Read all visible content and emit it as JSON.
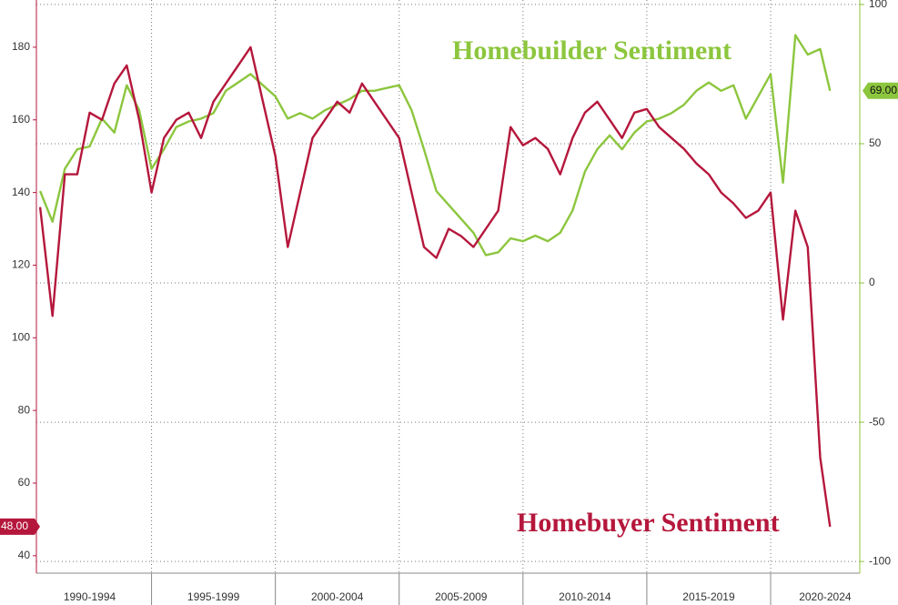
{
  "chart_data": {
    "type": "line",
    "x": [
      1990.5,
      1991,
      1991.5,
      1992,
      1992.5,
      1993,
      1993.5,
      1994,
      1994.5,
      1995,
      1995.5,
      1996,
      1996.5,
      1997,
      1997.5,
      1998,
      1998.5,
      1999,
      1999.5,
      2000,
      2000.5,
      2001,
      2001.5,
      2002,
      2002.5,
      2003,
      2003.5,
      2004,
      2004.5,
      2005,
      2005.5,
      2006,
      2006.5,
      2007,
      2007.5,
      2008,
      2008.5,
      2009,
      2009.5,
      2010,
      2010.5,
      2011,
      2011.5,
      2012,
      2012.5,
      2013,
      2013.5,
      2014,
      2014.5,
      2015,
      2015.5,
      2016,
      2016.5,
      2017,
      2017.5,
      2018,
      2018.5,
      2019,
      2019.5,
      2020,
      2020.5,
      2021,
      2021.5,
      2022,
      2022.4
    ],
    "xlim": [
      1990.35,
      2023.6
    ],
    "xticks": [
      {
        "value": 1992.5,
        "label": "1990-1994"
      },
      {
        "value": 1997.5,
        "label": "1995-1999"
      },
      {
        "value": 2002.5,
        "label": "2000-2004"
      },
      {
        "value": 2007.5,
        "label": "2005-2009"
      },
      {
        "value": 2012.5,
        "label": "2010-2014"
      },
      {
        "value": 2017.5,
        "label": "2015-2019"
      },
      {
        "value": 2022.2,
        "label": "2020-2024"
      }
    ],
    "xgrid": [
      1995,
      2000,
      2005,
      2010,
      2015,
      2020
    ],
    "ylim": [
      35.2,
      193
    ],
    "yticks": [
      40,
      60,
      80,
      100,
      120,
      140,
      160,
      180
    ],
    "y2lim": [
      -104.2,
      101.6
    ],
    "y2ticks": [
      -100,
      -50,
      0,
      50,
      100
    ],
    "grid": true,
    "series": [
      {
        "name": "Homebuilder Sentiment",
        "color": "#8cc63e",
        "axis": "y2",
        "values": [
          33,
          22,
          41,
          48,
          49,
          59,
          54,
          71,
          62,
          41,
          48,
          56,
          58,
          59,
          61,
          69,
          72,
          75,
          71,
          67,
          59,
          61,
          59,
          62,
          64,
          66,
          69,
          69,
          70,
          71,
          62,
          48,
          33,
          28,
          23,
          18,
          10,
          11,
          16,
          15,
          17,
          15,
          18,
          26,
          40,
          48,
          53,
          48,
          54,
          58,
          59,
          61,
          64,
          69,
          72,
          69,
          71,
          59,
          67,
          75,
          36,
          89,
          82,
          84,
          69
        ],
        "value_labels": [
          null,
          null,
          null,
          null,
          null,
          null,
          null,
          null,
          null,
          null,
          null,
          null,
          null,
          null,
          null,
          null,
          null,
          null,
          null,
          null,
          null,
          null,
          null,
          null,
          null,
          null,
          null,
          null,
          null,
          null,
          null,
          null,
          null,
          null,
          null,
          null,
          null,
          null,
          null,
          null,
          null,
          null,
          null,
          null,
          null,
          null,
          null,
          null,
          null,
          null,
          null,
          null,
          null,
          null,
          null,
          null,
          null,
          null,
          null,
          null,
          null,
          null,
          null,
          null,
          "69.00"
        ]
      },
      {
        "name": "Homebuyer Sentiment",
        "color": "#b5173c",
        "axis": "y",
        "values": [
          136,
          106,
          145,
          145,
          162,
          160,
          170,
          175,
          160,
          140,
          155,
          160,
          162,
          155,
          165,
          170,
          175,
          180,
          165,
          150,
          125,
          140,
          155,
          160,
          165,
          162,
          170,
          165,
          160,
          155,
          140,
          125,
          122,
          130,
          128,
          125,
          130,
          135,
          158,
          153,
          155,
          152,
          145,
          155,
          162,
          165,
          160,
          155,
          162,
          163,
          158,
          155,
          152,
          148,
          145,
          140,
          137,
          133,
          135,
          140,
          105,
          135,
          125,
          67,
          48
        ],
        "value_labels": [
          null,
          null,
          null,
          null,
          null,
          null,
          null,
          null,
          null,
          null,
          null,
          null,
          null,
          null,
          null,
          null,
          null,
          null,
          null,
          null,
          null,
          null,
          null,
          null,
          null,
          null,
          null,
          null,
          null,
          null,
          null,
          null,
          null,
          null,
          null,
          null,
          null,
          null,
          null,
          null,
          null,
          null,
          null,
          null,
          null,
          null,
          null,
          null,
          null,
          null,
          null,
          null,
          null,
          null,
          null,
          null,
          null,
          null,
          null,
          null,
          null,
          null,
          null,
          null,
          "48.00"
        ]
      }
    ]
  }
}
